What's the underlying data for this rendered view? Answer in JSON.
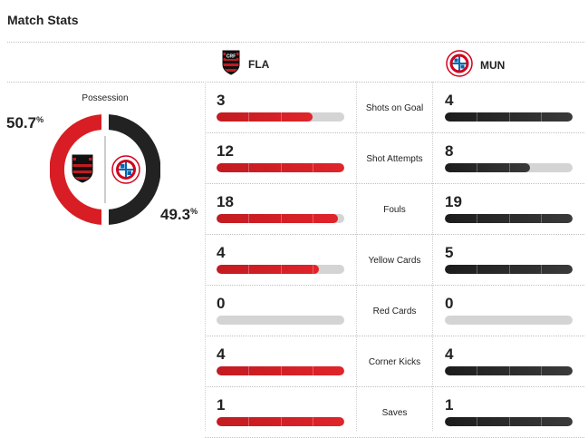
{
  "header": {
    "title": "Match Stats"
  },
  "teams": {
    "home": {
      "abbr": "FLA",
      "color": "#c21b21"
    },
    "away": {
      "abbr": "MUN",
      "color": "#1c1c1c",
      "logo_text": "FC BAYERN MÜNCHEN"
    }
  },
  "possession": {
    "label": "Possession",
    "home_pct": "50.7",
    "away_pct": "49.3",
    "unit": "%",
    "home_value": 50.7,
    "away_value": 49.3
  },
  "stats": [
    {
      "label": "Shots on Goal",
      "home": "3",
      "away": "4",
      "home_frac": 0.75,
      "away_frac": 1.0
    },
    {
      "label": "Shot Attempts",
      "home": "12",
      "away": "8",
      "home_frac": 1.0,
      "away_frac": 0.67
    },
    {
      "label": "Fouls",
      "home": "18",
      "away": "19",
      "home_frac": 0.95,
      "away_frac": 1.0
    },
    {
      "label": "Yellow Cards",
      "home": "4",
      "away": "5",
      "home_frac": 0.8,
      "away_frac": 1.0
    },
    {
      "label": "Red Cards",
      "home": "0",
      "away": "0",
      "home_frac": 0.0,
      "away_frac": 0.0
    },
    {
      "label": "Corner Kicks",
      "home": "4",
      "away": "4",
      "home_frac": 1.0,
      "away_frac": 1.0
    },
    {
      "label": "Saves",
      "home": "1",
      "away": "1",
      "home_frac": 1.0,
      "away_frac": 1.0
    }
  ]
}
